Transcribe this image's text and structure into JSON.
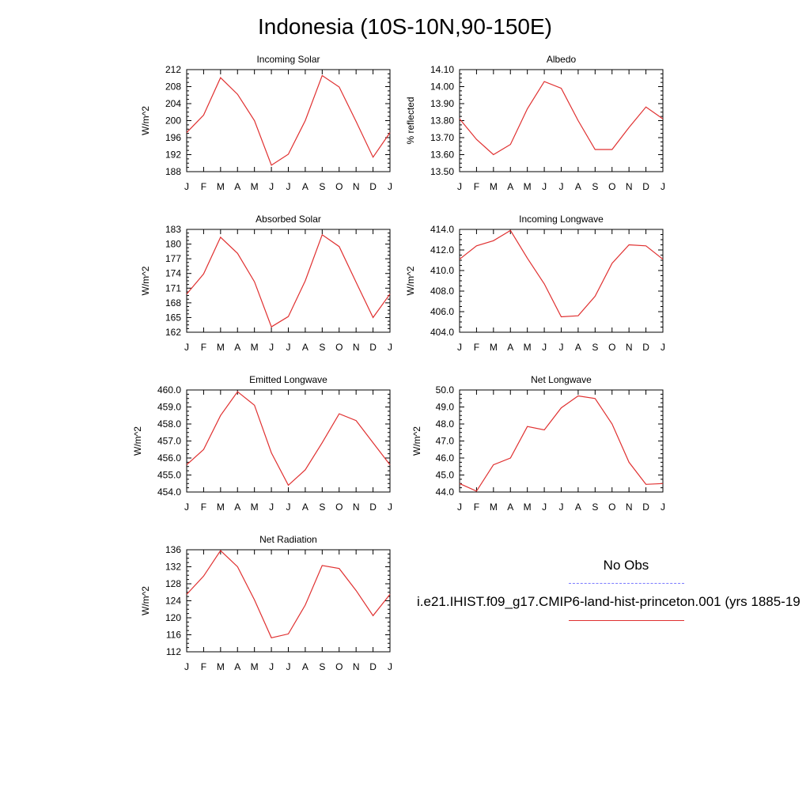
{
  "page_title": "Indonesia (10S-10N,90-150E)",
  "legend": {
    "obs_label": "No Obs",
    "model_label": "i.e21.IHIST.f09_g17.CMIP6-land-hist-princeton.001 (yrs 1885-19",
    "obs_color": "#7b7bff",
    "model_color": "#e03030"
  },
  "chart_data": [
    {
      "type": "line",
      "title": "Incoming Solar",
      "ylabel": "W/m^2",
      "categories": [
        "J",
        "F",
        "M",
        "A",
        "M",
        "J",
        "J",
        "A",
        "S",
        "O",
        "N",
        "D",
        "J"
      ],
      "ylim": [
        188,
        212
      ],
      "yticks": [
        "188",
        "192",
        "196",
        "200",
        "204",
        "208",
        "212"
      ],
      "values": [
        197.2,
        201.3,
        210.1,
        206.2,
        200.0,
        189.5,
        192.1,
        200.0,
        210.6,
        207.9,
        199.8,
        191.4,
        197.2
      ]
    },
    {
      "type": "line",
      "title": "Albedo",
      "ylabel": "% reflected",
      "categories": [
        "J",
        "F",
        "M",
        "A",
        "M",
        "J",
        "J",
        "A",
        "S",
        "O",
        "N",
        "D",
        "J"
      ],
      "ylim": [
        13.5,
        14.1
      ],
      "yticks": [
        "13.50",
        "13.60",
        "13.70",
        "13.80",
        "13.90",
        "14.00",
        "14.10"
      ],
      "values": [
        13.81,
        13.69,
        13.6,
        13.66,
        13.87,
        14.03,
        13.99,
        13.8,
        13.63,
        13.63,
        13.76,
        13.88,
        13.81
      ]
    },
    {
      "type": "line",
      "title": "Absorbed Solar",
      "ylabel": "W/m^2",
      "categories": [
        "J",
        "F",
        "M",
        "A",
        "M",
        "J",
        "J",
        "A",
        "S",
        "O",
        "N",
        "D",
        "J"
      ],
      "ylim": [
        162,
        183
      ],
      "yticks": [
        "162",
        "165",
        "168",
        "171",
        "174",
        "177",
        "180",
        "183"
      ],
      "values": [
        169.8,
        173.9,
        181.4,
        178.1,
        172.3,
        163.1,
        165.2,
        172.5,
        181.9,
        179.5,
        172.2,
        165.0,
        169.8
      ]
    },
    {
      "type": "line",
      "title": "Incoming Longwave",
      "ylabel": "W/m^2",
      "categories": [
        "J",
        "F",
        "M",
        "A",
        "M",
        "J",
        "J",
        "A",
        "S",
        "O",
        "N",
        "D",
        "J"
      ],
      "ylim": [
        404,
        414
      ],
      "yticks": [
        "404.0",
        "406.0",
        "408.0",
        "410.0",
        "412.0",
        "414.0"
      ],
      "values": [
        411.1,
        412.4,
        412.9,
        413.9,
        411.2,
        408.7,
        405.5,
        405.6,
        407.5,
        410.7,
        412.5,
        412.4,
        411.1
      ]
    },
    {
      "type": "line",
      "title": "Emitted Longwave",
      "ylabel": "W/m^2",
      "categories": [
        "J",
        "F",
        "M",
        "A",
        "M",
        "J",
        "J",
        "A",
        "S",
        "O",
        "N",
        "D",
        "J"
      ],
      "ylim": [
        454,
        460
      ],
      "yticks": [
        "454.0",
        "455.0",
        "456.0",
        "457.0",
        "458.0",
        "459.0",
        "460.0"
      ],
      "values": [
        455.6,
        456.5,
        458.5,
        459.9,
        459.1,
        456.3,
        454.4,
        455.3,
        456.9,
        458.6,
        458.2,
        456.9,
        455.6
      ]
    },
    {
      "type": "line",
      "title": "Net Longwave",
      "ylabel": "W/m^2",
      "categories": [
        "J",
        "F",
        "M",
        "A",
        "M",
        "J",
        "J",
        "A",
        "S",
        "O",
        "N",
        "D",
        "J"
      ],
      "ylim": [
        44,
        50
      ],
      "yticks": [
        "44.0",
        "45.0",
        "46.0",
        "47.0",
        "48.0",
        "49.0",
        "50.0"
      ],
      "values": [
        44.5,
        44.05,
        45.6,
        46.0,
        47.85,
        47.65,
        48.95,
        49.65,
        49.5,
        48.0,
        45.75,
        44.45,
        44.5
      ]
    },
    {
      "type": "line",
      "title": "Net Radiation",
      "ylabel": "W/m^2",
      "categories": [
        "J",
        "F",
        "M",
        "A",
        "M",
        "J",
        "J",
        "A",
        "S",
        "O",
        "N",
        "D",
        "J"
      ],
      "ylim": [
        112,
        136
      ],
      "yticks": [
        "112",
        "116",
        "120",
        "124",
        "128",
        "132",
        "136"
      ],
      "values": [
        125.5,
        129.8,
        135.8,
        132.0,
        124.2,
        115.3,
        116.2,
        123.0,
        132.3,
        131.6,
        126.4,
        120.5,
        125.5
      ]
    }
  ]
}
